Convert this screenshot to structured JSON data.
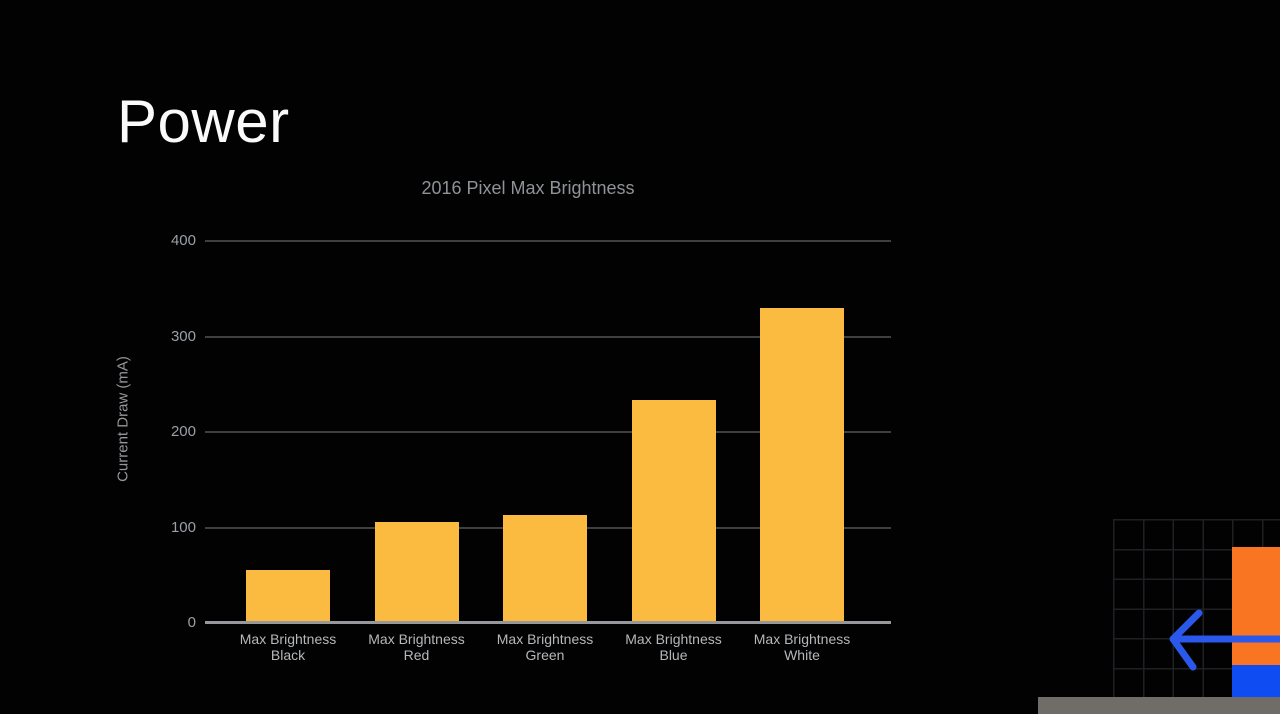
{
  "slide": {
    "title": "Power"
  },
  "chart_data": {
    "type": "bar",
    "title": "2016 Pixel Max Brightness",
    "xlabel": "",
    "ylabel": "Current Draw (mA)",
    "categories": [
      "Max Brightness Black",
      "Max Brightness Red",
      "Max Brightness Green",
      "Max Brightness Blue",
      "Max Brightness White"
    ],
    "values": [
      55,
      106,
      113,
      234,
      330
    ],
    "yticks": [
      0,
      100,
      200,
      300,
      400
    ],
    "ylim": [
      0,
      400
    ],
    "grid": true,
    "legend": false,
    "bar_color": "#fbba40",
    "title_color": "#8f9297",
    "axis_text_color": "#9aa0a6",
    "x_label_color": "#b5b8bb",
    "grid_color": "#3c4043",
    "baseline_color": "#96989b"
  },
  "corner_graphic": {
    "orange_block_color": "#fa7522",
    "blue_block_color": "#0f4df2",
    "arrow_color": "#2a58ea",
    "arrow_direction": "left",
    "filmstrip_bar_color": "#706d69",
    "grid_line_color": "#1e2023"
  }
}
